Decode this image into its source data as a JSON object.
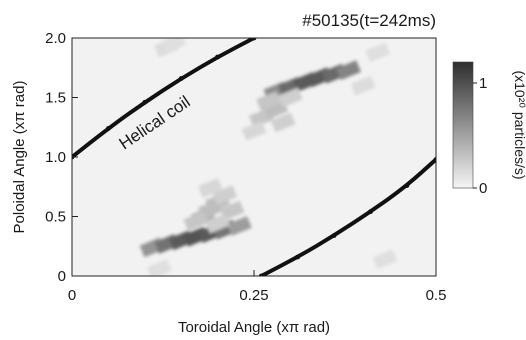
{
  "chart_data": {
    "type": "heatmap",
    "title": "#50135(t=242ms)",
    "xlabel": "Toroidal Angle (xπ rad)",
    "ylabel": "Poloidal Angle (xπ rad)",
    "xlim": [
      0,
      0.5
    ],
    "ylim": [
      0,
      2.0
    ],
    "x_ticks": [
      {
        "value": 0,
        "label": "0"
      },
      {
        "value": 0.25,
        "label": "0.25"
      },
      {
        "value": 0.5,
        "label": "0.5"
      }
    ],
    "y_ticks": [
      {
        "value": 0,
        "label": "0"
      },
      {
        "value": 0.5,
        "label": "0.5"
      },
      {
        "value": 1.0,
        "label": "1.0"
      },
      {
        "value": 1.5,
        "label": "1.5"
      },
      {
        "value": 2.0,
        "label": "2.0"
      }
    ],
    "colorbar": {
      "label": "(x10²⁰ particles/s)",
      "range": [
        0,
        1.2
      ],
      "ticks": [
        {
          "value": 0,
          "label": "0"
        },
        {
          "value": 1,
          "label": "1"
        }
      ]
    },
    "annotation": "Helical coil",
    "helical_coils": [
      {
        "x": [
          0.0,
          0.05,
          0.1,
          0.15,
          0.2,
          0.25
        ],
        "y": [
          1.0,
          1.24,
          1.46,
          1.66,
          1.84,
          2.0
        ]
      },
      {
        "x": [
          0.26,
          0.31,
          0.36,
          0.41,
          0.46,
          0.5
        ],
        "y": [
          0.0,
          0.16,
          0.34,
          0.54,
          0.76,
          0.98
        ]
      }
    ],
    "intensity_blobs": [
      {
        "x": [
          0.11,
          0.13,
          0.15,
          0.17,
          0.19,
          0.21,
          0.23
        ],
        "y": [
          0.24,
          0.27,
          0.3,
          0.33,
          0.36,
          0.39,
          0.42
        ],
        "values": [
          0.55,
          0.75,
          0.9,
          0.95,
          0.9,
          0.75,
          0.5
        ]
      },
      {
        "x": [
          0.18,
          0.19,
          0.2,
          0.21,
          0.22,
          0.17,
          0.19,
          0.2
        ],
        "y": [
          0.5,
          0.56,
          0.62,
          0.68,
          0.55,
          0.46,
          0.74,
          0.44
        ],
        "values": [
          0.35,
          0.3,
          0.3,
          0.2,
          0.25,
          0.25,
          0.15,
          0.2
        ]
      },
      {
        "x": [
          0.28,
          0.3,
          0.32,
          0.34,
          0.36,
          0.38
        ],
        "y": [
          1.55,
          1.59,
          1.63,
          1.67,
          1.7,
          1.73
        ],
        "values": [
          0.6,
          0.8,
          0.9,
          0.9,
          0.8,
          0.65
        ]
      },
      {
        "x": [
          0.26,
          0.28,
          0.27,
          0.29,
          0.25,
          0.3
        ],
        "y": [
          1.33,
          1.4,
          1.47,
          1.29,
          1.22,
          1.5
        ],
        "values": [
          0.25,
          0.3,
          0.25,
          0.2,
          0.15,
          0.2
        ]
      },
      {
        "x": [
          0.13,
          0.14,
          0.4,
          0.42,
          0.12,
          0.43
        ],
        "y": [
          1.92,
          1.96,
          1.6,
          1.88,
          0.06,
          0.14
        ],
        "values": [
          0.12,
          0.1,
          0.12,
          0.1,
          0.1,
          0.1
        ]
      }
    ]
  }
}
